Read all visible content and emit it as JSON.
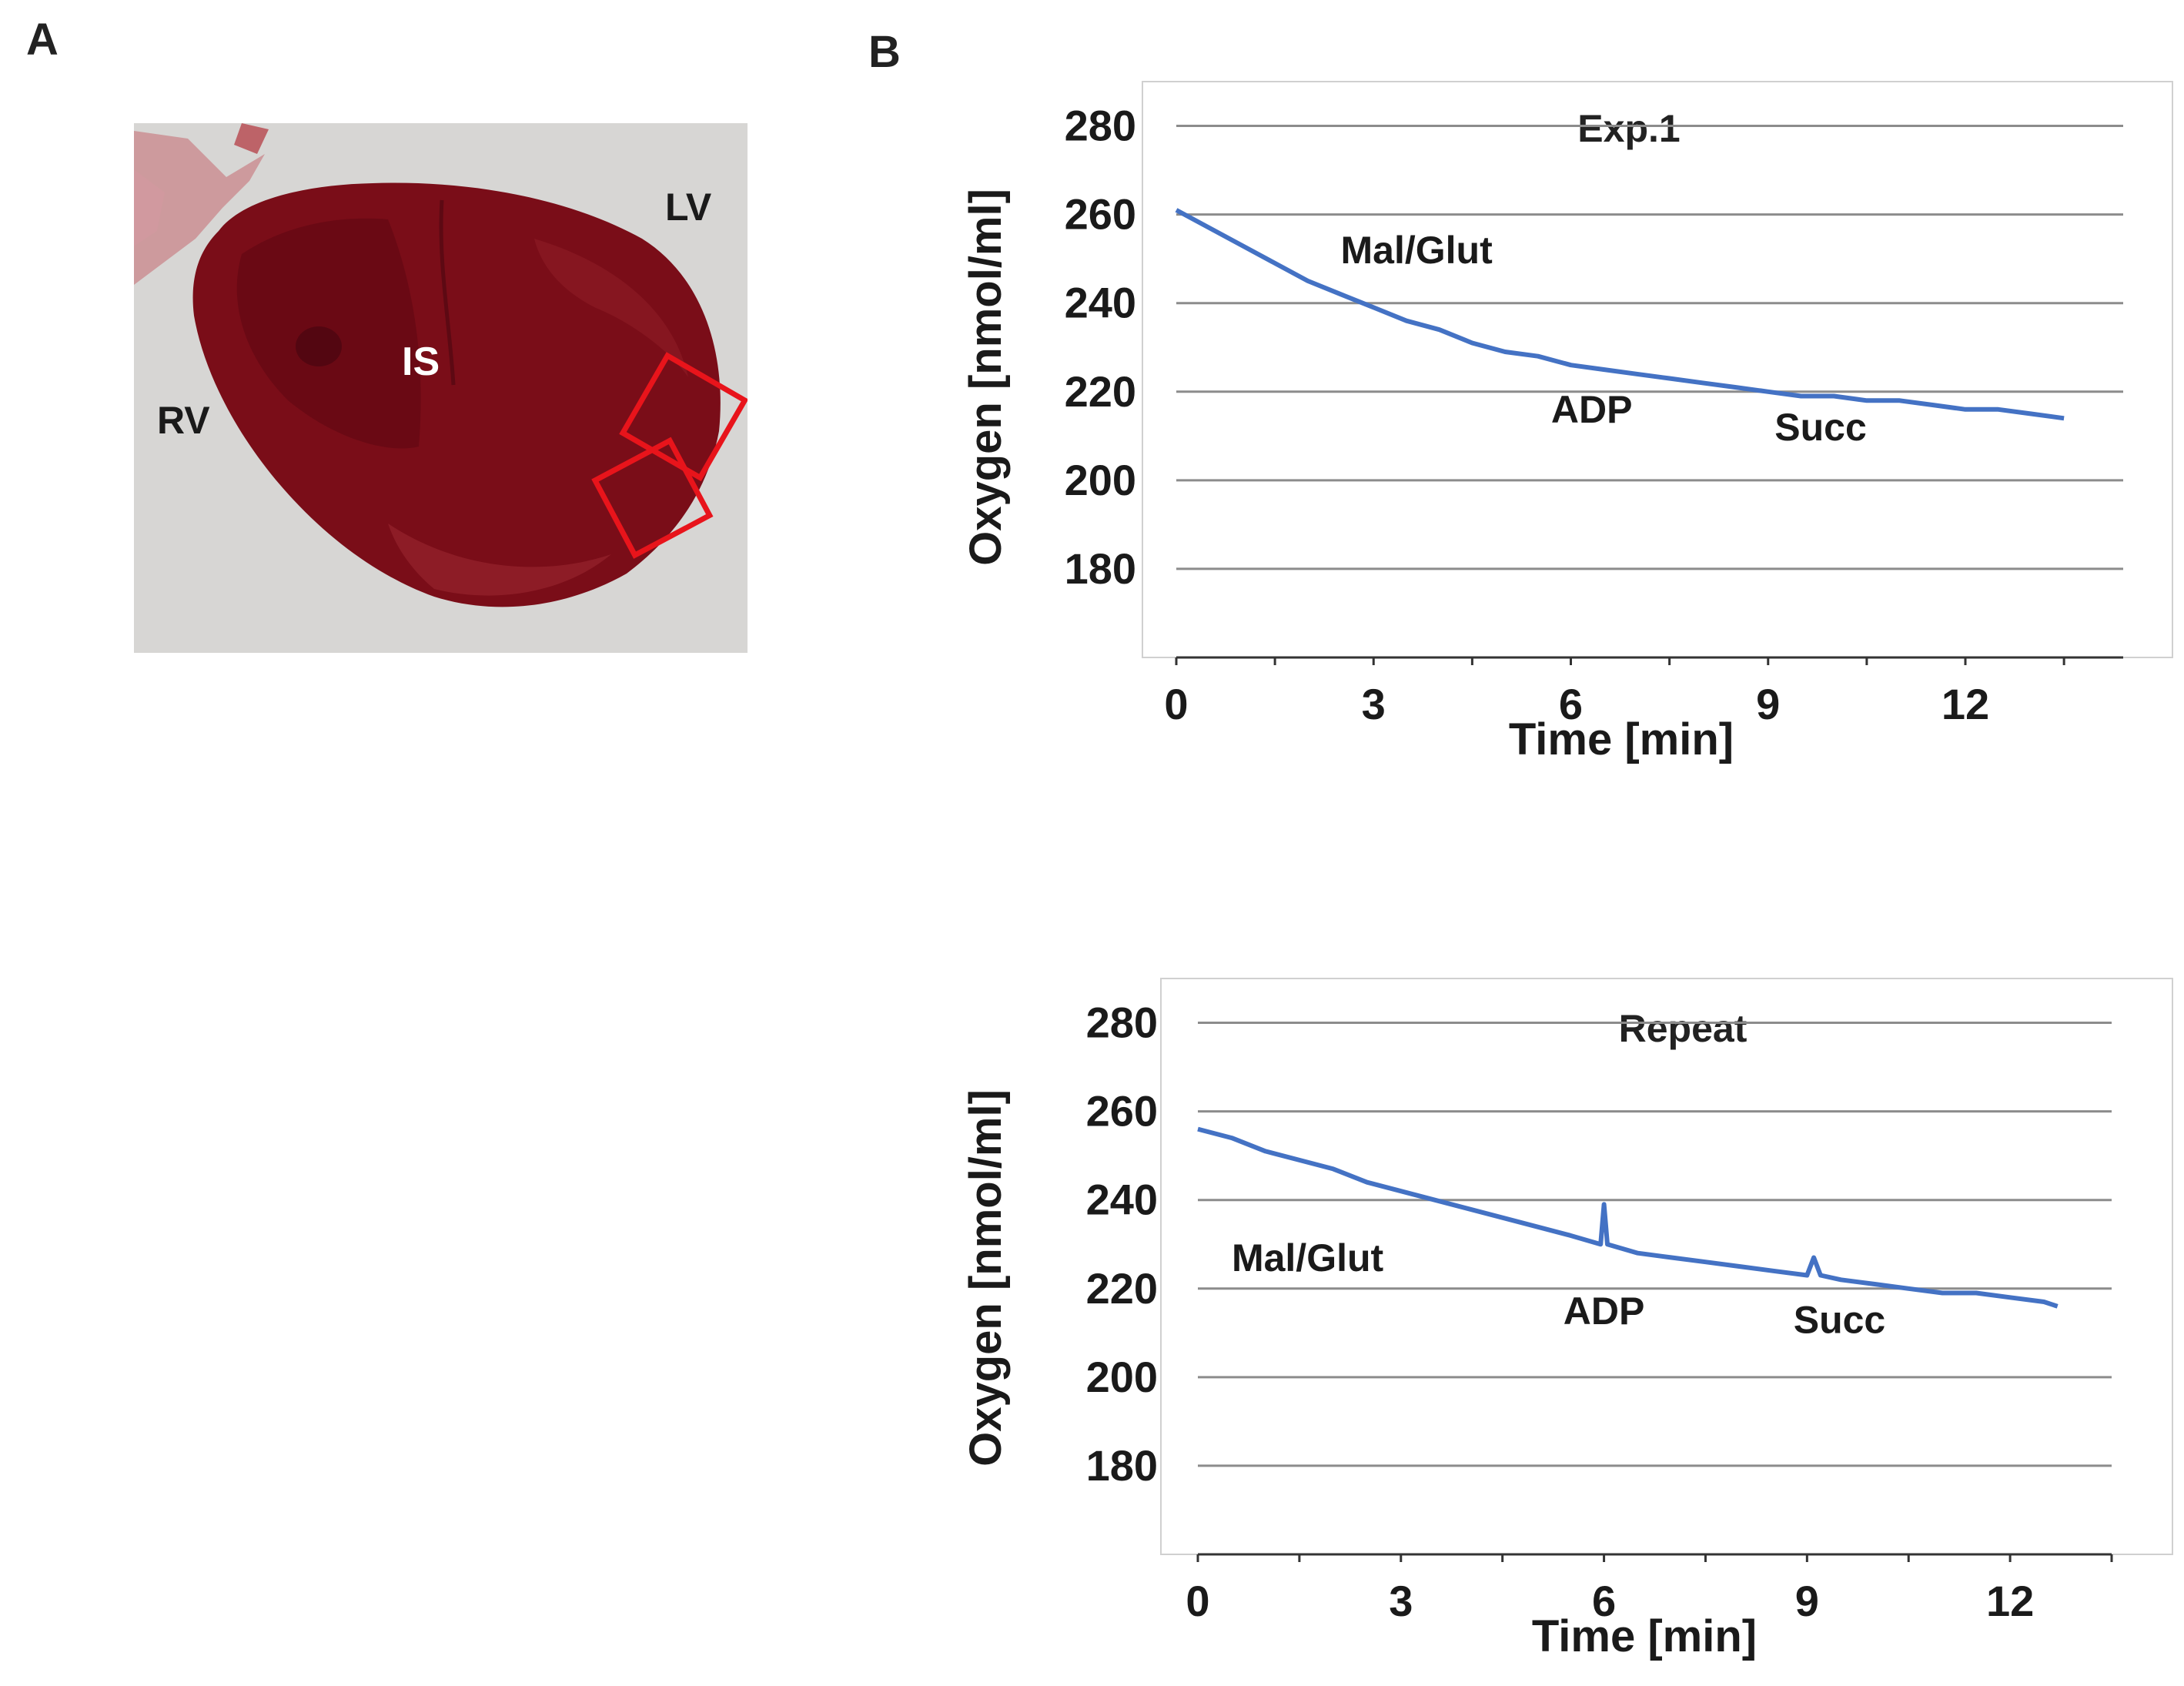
{
  "panels": {
    "a_label": "A",
    "b_label": "B"
  },
  "photo": {
    "labels": {
      "lv": "LV",
      "rv": "RV",
      "is": "IS"
    },
    "colors": {
      "background": "#d7d6d4",
      "tissue": "#7a0d18",
      "tissue_dark": "#5c0812",
      "tissue_light": "#8e1c26",
      "box": "#e8141b"
    }
  },
  "chart_data": [
    {
      "type": "line",
      "title": "Exp.1",
      "xlabel": "Time [min]",
      "ylabel": "Oxygen [nmol/ml]",
      "xlim": [
        0,
        14.4
      ],
      "ylim": [
        160,
        290
      ],
      "xticks": [
        0,
        3,
        6,
        9,
        12
      ],
      "yticks": [
        180,
        200,
        220,
        240,
        260,
        280
      ],
      "grid": true,
      "color": "#4472c4",
      "series": [
        {
          "x": [
            0,
            0.5,
            1,
            1.5,
            2,
            2.5,
            3,
            3.5,
            4,
            4.5,
            5,
            5.5,
            6,
            6.5,
            7,
            7.5,
            8,
            8.5,
            9,
            9.5,
            10,
            10.5,
            11,
            11.5,
            12,
            12.5,
            13,
            13.5
          ],
          "y": [
            261,
            257,
            253,
            249,
            245,
            242,
            239,
            236,
            234,
            231,
            229,
            228,
            226,
            225,
            224,
            223,
            222,
            221,
            220,
            219,
            219,
            218,
            218,
            217,
            216,
            216,
            215,
            214
          ]
        }
      ],
      "annotations": [
        {
          "text": "Mal/Glut",
          "x": 2.5,
          "y": 249
        },
        {
          "text": "ADP",
          "x": 5.7,
          "y": 213
        },
        {
          "text": "Succ",
          "x": 9.1,
          "y": 209
        }
      ]
    },
    {
      "type": "line",
      "title": "Repeat",
      "xlabel": "Time [min]",
      "ylabel": "Oxygen [nmol/ml]",
      "xlim": [
        0,
        13.5
      ],
      "ylim": [
        160,
        290
      ],
      "xticks": [
        0,
        3,
        6,
        9,
        12
      ],
      "yticks": [
        180,
        200,
        220,
        240,
        260,
        280
      ],
      "grid": true,
      "color": "#4472c4",
      "series": [
        {
          "x": [
            0,
            0.5,
            1,
            1.5,
            2,
            2.5,
            3,
            3.5,
            4,
            4.5,
            5,
            5.5,
            5.95,
            6.0,
            6.05,
            6.5,
            7,
            7.5,
            8,
            8.5,
            9,
            9.1,
            9.2,
            9.5,
            10,
            10.5,
            11,
            11.5,
            12,
            12.5,
            12.7
          ],
          "y": [
            256,
            254,
            251,
            249,
            247,
            244,
            242,
            240,
            238,
            236,
            234,
            232,
            230,
            239,
            230,
            228,
            227,
            226,
            225,
            224,
            223,
            227,
            223,
            222,
            221,
            220,
            219,
            219,
            218,
            217,
            216
          ]
        }
      ],
      "annotations": [
        {
          "text": "Mal/Glut",
          "x": 0.5,
          "y": 224
        },
        {
          "text": "ADP",
          "x": 5.4,
          "y": 212
        },
        {
          "text": "Succ",
          "x": 8.8,
          "y": 210
        }
      ]
    }
  ]
}
